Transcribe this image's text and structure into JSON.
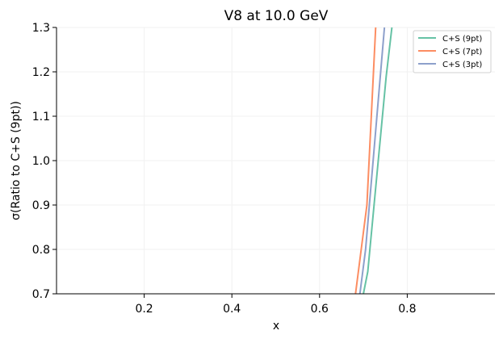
{
  "chart_data": {
    "type": "line",
    "title": "V8 at 10.0 GeV",
    "xlabel": "x",
    "ylabel": "σ(Ratio to C+S (9pt))",
    "xlim": [
      0.0,
      1.0
    ],
    "ylim": [
      0.7,
      1.3
    ],
    "xticks": [
      0.2,
      0.4,
      0.6,
      0.8
    ],
    "yticks": [
      0.7,
      0.8,
      0.9,
      1.0,
      1.1,
      1.2,
      1.3
    ],
    "xtick_labels": [
      "0.2",
      "0.4",
      "0.6",
      "0.8"
    ],
    "ytick_labels": [
      "0.7",
      "0.8",
      "0.9",
      "1.0",
      "1.1",
      "1.2",
      "1.3"
    ],
    "grid": true,
    "legend_position": "top-right",
    "series": [
      {
        "name": "C+S (9pt)",
        "color": "#66c2a5",
        "x": [
          0.7,
          0.71,
          0.752,
          0.765
        ],
        "y": [
          0.7,
          0.75,
          1.19,
          1.3
        ]
      },
      {
        "name": "C+S (7pt)",
        "color": "#fc8d62",
        "x": [
          0.682,
          0.708,
          0.728
        ],
        "y": [
          0.7,
          0.9,
          1.3
        ]
      },
      {
        "name": "C+S (3pt)",
        "color": "#8da0cb",
        "x": [
          0.692,
          0.705,
          0.748
        ],
        "y": [
          0.7,
          0.8,
          1.3
        ]
      }
    ]
  }
}
